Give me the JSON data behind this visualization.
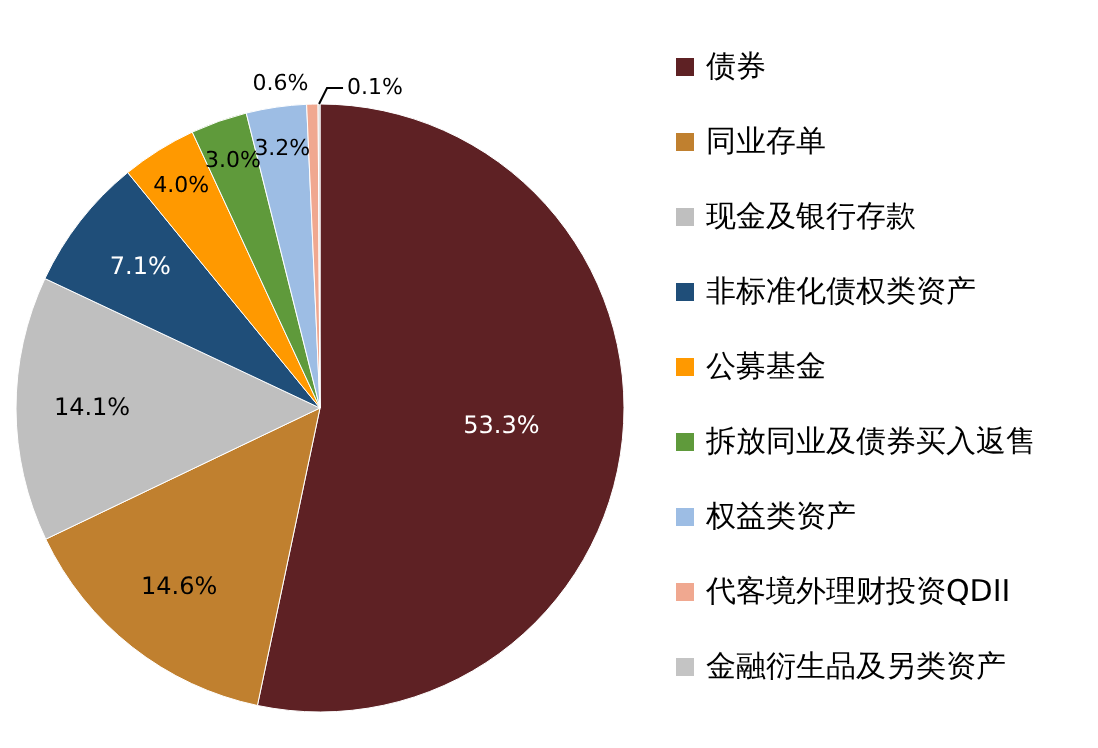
{
  "chart_data": {
    "type": "pie",
    "categories": [
      "债券",
      "同业存单",
      "现金及银行存款",
      "非标准化债权类资产",
      "公募基金",
      "拆放同业及债券买入返售",
      "权益类资产",
      "代客境外理财投资QDII",
      "金融衍生品及另类资产"
    ],
    "values": [
      53.3,
      14.6,
      14.1,
      7.1,
      4.0,
      3.0,
      3.2,
      0.6,
      0.1
    ],
    "colors": [
      "#5e2124",
      "#c0802f",
      "#bfbfbf",
      "#1f4e79",
      "#ff9900",
      "#5f9a3b",
      "#9dbde4",
      "#f0a890",
      "#c4c4c4"
    ],
    "value_labels": [
      "53.3%",
      "14.6%",
      "14.1%",
      "7.1%",
      "4.0%",
      "3.0%",
      "3.2%",
      "0.6%",
      "0.1%"
    ],
    "legend": "right"
  }
}
